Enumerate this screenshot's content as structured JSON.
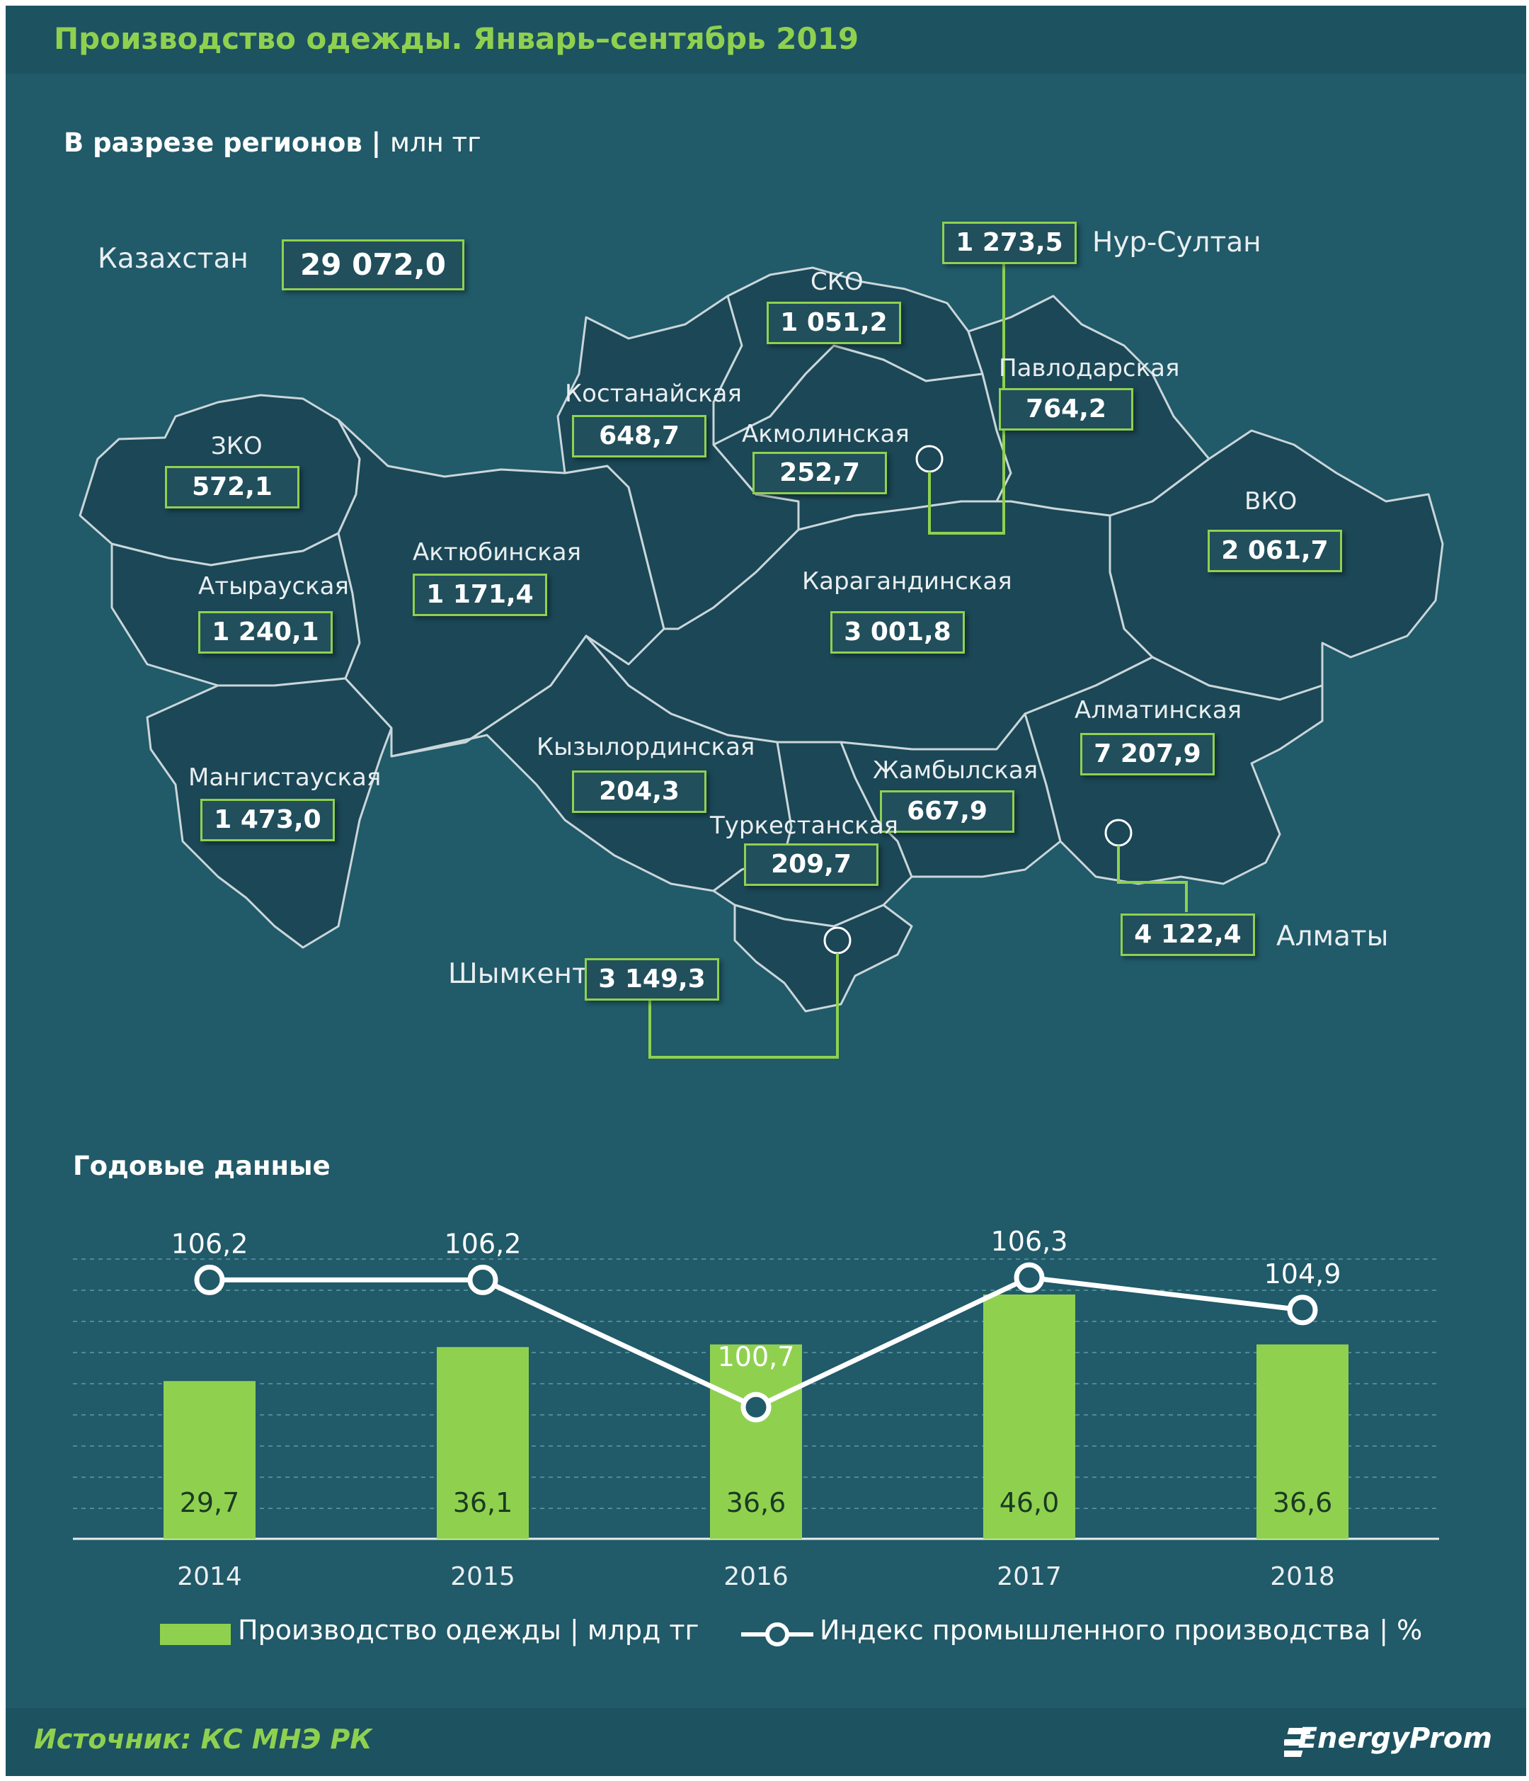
{
  "title": "Производство одежды. Январь–сентябрь 2019",
  "regions_section": {
    "heading": "В разрезе регионов",
    "separator": "|",
    "unit": "млн тг"
  },
  "total": {
    "label": "Казахстан",
    "value": "29 072,0"
  },
  "regions": [
    {
      "name": "СКО",
      "value": "1 051,2"
    },
    {
      "name": "Нур-Султан",
      "value": "1 273,5"
    },
    {
      "name": "Павлодарская",
      "value": "764,2"
    },
    {
      "name": "Костанайская",
      "value": "648,7"
    },
    {
      "name": "Акмолинская",
      "value": "252,7"
    },
    {
      "name": "ЗКО",
      "value": "572,1"
    },
    {
      "name": "ВКО",
      "value": "2 061,7"
    },
    {
      "name": "Актюбинская",
      "value": "1 171,4"
    },
    {
      "name": "Атырауская",
      "value": "1 240,1"
    },
    {
      "name": "Карагандинская",
      "value": "3 001,8"
    },
    {
      "name": "Алматинская",
      "value": "7 207,9"
    },
    {
      "name": "Кызылординская",
      "value": "204,3"
    },
    {
      "name": "Мангистауская",
      "value": "1 473,0"
    },
    {
      "name": "Жамбылская",
      "value": "667,9"
    },
    {
      "name": "Туркестанская",
      "value": "209,7"
    },
    {
      "name": "Алматы",
      "value": "4 122,4"
    },
    {
      "name": "Шымкент",
      "value": "3 149,3"
    }
  ],
  "annual_section": {
    "heading": "Годовые данные"
  },
  "chart_data": {
    "type": "bar",
    "title": "Годовые данные",
    "categories": [
      "2014",
      "2015",
      "2016",
      "2017",
      "2018"
    ],
    "series": [
      {
        "name": "Производство одежды | млрд тг",
        "kind": "bar",
        "values": [
          29.7,
          36.1,
          36.6,
          46.0,
          36.6
        ],
        "labels": [
          "29,7",
          "36,1",
          "36,6",
          "46,0",
          "36,6"
        ],
        "color": "#8fd14f"
      },
      {
        "name": "Индекс промышленного производства | %",
        "kind": "line",
        "values": [
          106.2,
          106.2,
          100.7,
          106.3,
          104.9
        ],
        "labels": [
          "106,2",
          "106,2",
          "100,7",
          "106,3",
          "104,9"
        ],
        "color": "#ffffff"
      }
    ],
    "grid": "dashed horizontal"
  },
  "legend": {
    "bar_label": "Производство одежды | млрд тг",
    "line_label": "Индекс промышленного производства | %"
  },
  "footer": {
    "source": "Источник: КС МНЭ РК",
    "brand": "EnergyProm"
  },
  "colors": {
    "background": "#215a69",
    "accent": "#8fd14f",
    "region_fill": "#1b4756"
  }
}
